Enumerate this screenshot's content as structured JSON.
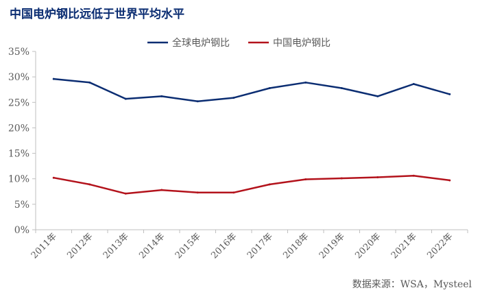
{
  "title": "中国电炉钢比远低于世界平均水平",
  "source": "数据来源：WSA，Mysteel",
  "colors": {
    "title": "#0b2d72",
    "axis": "#bfbfbf",
    "text": "#595959"
  },
  "chart_data": {
    "type": "line",
    "categories": [
      "2011年",
      "2012年",
      "2013年",
      "2014年",
      "2015年",
      "2016年",
      "2017年",
      "2018年",
      "2019年",
      "2020年",
      "2021年",
      "2022年"
    ],
    "series": [
      {
        "name": "全球电炉钢比",
        "color": "#0b2d72",
        "values": [
          29.6,
          28.9,
          25.7,
          26.2,
          25.2,
          25.9,
          27.8,
          28.9,
          27.8,
          26.2,
          28.6,
          26.6
        ]
      },
      {
        "name": "中国电炉钢比",
        "color": "#b3121b",
        "values": [
          10.2,
          8.9,
          7.1,
          7.8,
          7.3,
          7.3,
          8.9,
          9.9,
          10.1,
          10.3,
          10.6,
          9.7
        ]
      }
    ],
    "yticks": [
      "0%",
      "5%",
      "10%",
      "15%",
      "20%",
      "25%",
      "30%",
      "35%"
    ],
    "ylim": [
      0,
      35
    ],
    "legend": "top-center",
    "grid": false
  }
}
